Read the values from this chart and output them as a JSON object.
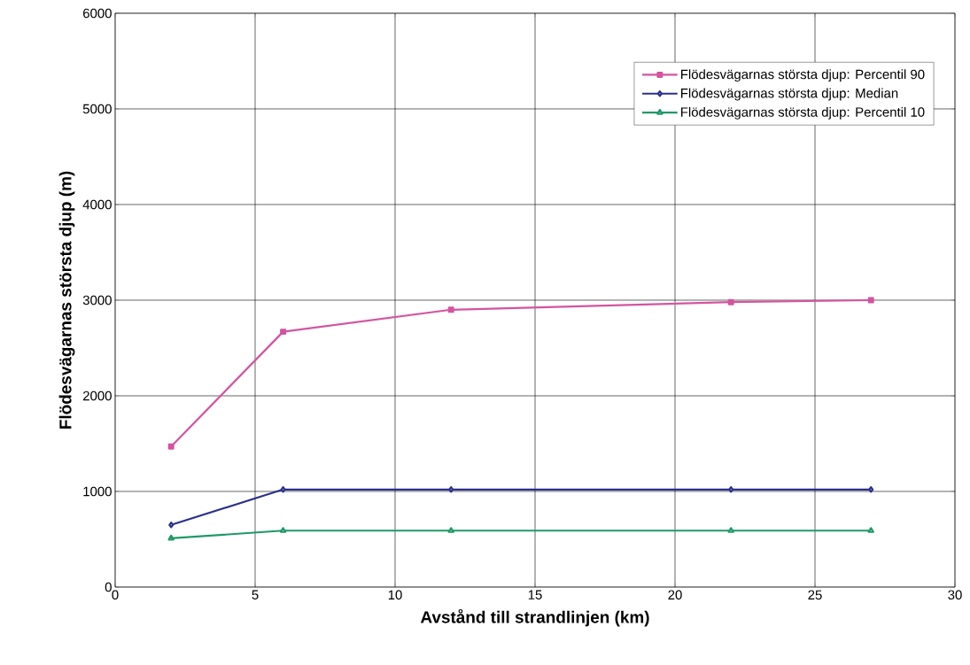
{
  "chart_data": {
    "type": "line",
    "xlabel": "Avstånd till strandlinjen (km)",
    "ylabel": "Flödesvägarnas största djup (m)",
    "x": [
      2,
      6,
      12,
      22,
      27
    ],
    "series": [
      {
        "name": "Flödesvägarnas största djup: Percentil 90",
        "color": "#d4549f",
        "marker": "square",
        "values": [
          1470,
          2670,
          2900,
          2980,
          3000
        ]
      },
      {
        "name": "Flödesvägarnas största djup: Median",
        "color": "#2b2f8c",
        "marker": "diamond",
        "values": [
          650,
          1020,
          1020,
          1020,
          1020
        ]
      },
      {
        "name": "Flödesvägarnas största djup: Percentil 10",
        "color": "#1e9a68",
        "marker": "triangle",
        "values": [
          510,
          590,
          590,
          590,
          590
        ]
      }
    ],
    "xlim": [
      0,
      30
    ],
    "xticks": [
      0,
      5,
      10,
      15,
      20,
      25,
      30
    ],
    "ylim": [
      0,
      6000
    ],
    "yticks": [
      0,
      1000,
      2000,
      3000,
      4000,
      5000,
      6000
    ],
    "grid": true,
    "legend": "top right",
    "line_style": "solid"
  }
}
